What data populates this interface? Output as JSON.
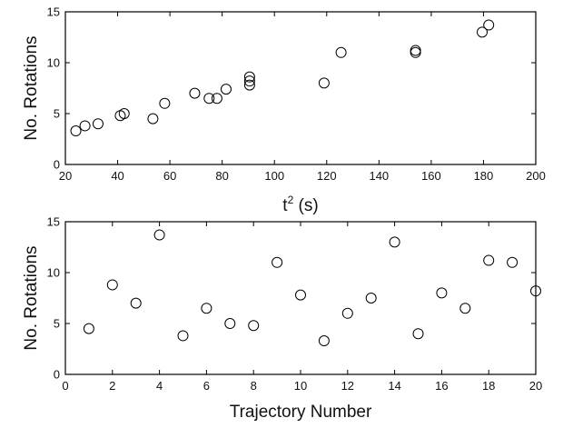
{
  "chart_data": [
    {
      "type": "scatter",
      "xlabel": "t",
      "xlabel_superscript": "2",
      "xlabel_unit": " (s)",
      "ylabel": "No. Rotations",
      "xlim": [
        20,
        200
      ],
      "ylim": [
        0,
        15
      ],
      "xticks": [
        20,
        40,
        60,
        80,
        100,
        120,
        140,
        160,
        180,
        200
      ],
      "yticks": [
        0,
        5,
        10,
        15
      ],
      "grid": false,
      "marker": "open-circle",
      "points": [
        {
          "x": 24,
          "y": 3.3
        },
        {
          "x": 27.5,
          "y": 3.8
        },
        {
          "x": 32.5,
          "y": 4.0
        },
        {
          "x": 41,
          "y": 4.8
        },
        {
          "x": 42.5,
          "y": 5.0
        },
        {
          "x": 53.5,
          "y": 4.5
        },
        {
          "x": 58,
          "y": 6.0
        },
        {
          "x": 69.5,
          "y": 7.0
        },
        {
          "x": 75,
          "y": 6.5
        },
        {
          "x": 78,
          "y": 6.5
        },
        {
          "x": 81.5,
          "y": 7.4
        },
        {
          "x": 90.5,
          "y": 7.8
        },
        {
          "x": 90.5,
          "y": 8.2
        },
        {
          "x": 90.5,
          "y": 8.6
        },
        {
          "x": 119,
          "y": 8.0
        },
        {
          "x": 125.5,
          "y": 11.0
        },
        {
          "x": 154,
          "y": 11.0
        },
        {
          "x": 154,
          "y": 11.2
        },
        {
          "x": 179.5,
          "y": 13.0
        },
        {
          "x": 182,
          "y": 13.7
        }
      ]
    },
    {
      "type": "scatter",
      "xlabel": "Trajectory Number",
      "ylabel": "No. Rotations",
      "xlim": [
        0,
        20
      ],
      "ylim": [
        0,
        15
      ],
      "xticks": [
        0,
        2,
        4,
        6,
        8,
        10,
        12,
        14,
        16,
        18,
        20
      ],
      "yticks": [
        0,
        5,
        10,
        15
      ],
      "grid": false,
      "marker": "open-circle",
      "points": [
        {
          "x": 1,
          "y": 4.5
        },
        {
          "x": 2,
          "y": 8.8
        },
        {
          "x": 3,
          "y": 7.0
        },
        {
          "x": 4,
          "y": 13.7
        },
        {
          "x": 5,
          "y": 3.8
        },
        {
          "x": 6,
          "y": 6.5
        },
        {
          "x": 7,
          "y": 5.0
        },
        {
          "x": 8,
          "y": 4.8
        },
        {
          "x": 9,
          "y": 11.0
        },
        {
          "x": 10,
          "y": 7.8
        },
        {
          "x": 11,
          "y": 3.3
        },
        {
          "x": 12,
          "y": 6.0
        },
        {
          "x": 13,
          "y": 7.5
        },
        {
          "x": 14,
          "y": 13.0
        },
        {
          "x": 15,
          "y": 4.0
        },
        {
          "x": 16,
          "y": 8.0
        },
        {
          "x": 17,
          "y": 6.5
        },
        {
          "x": 18,
          "y": 11.2
        },
        {
          "x": 19,
          "y": 11.0
        },
        {
          "x": 20,
          "y": 8.2
        }
      ]
    }
  ]
}
